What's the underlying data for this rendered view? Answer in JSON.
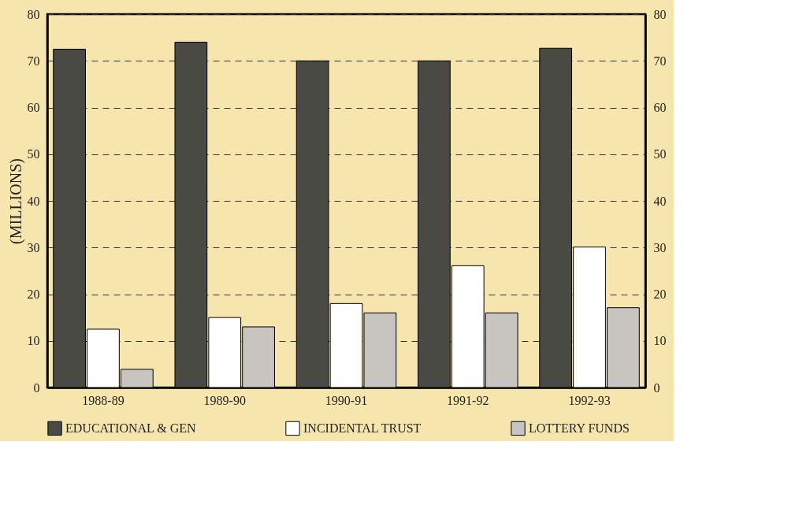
{
  "chart_data": {
    "type": "bar",
    "ylabel": "(MILLIONS)",
    "categories": [
      "1988-89",
      "1989-90",
      "1990-91",
      "1991-92",
      "1992-93"
    ],
    "series": [
      {
        "name": "EDUCATIONAL & GEN",
        "color": "#4a4a44",
        "values": [
          72.5,
          74.0,
          70.0,
          70.0,
          72.7
        ]
      },
      {
        "name": "INCIDENTAL TRUST",
        "color": "#ffffff",
        "values": [
          12.5,
          15.0,
          18.0,
          26.1,
          30.1
        ]
      },
      {
        "name": "LOTTERY FUNDS",
        "color": "#c8c5c0",
        "values": [
          3.9,
          13.0,
          16.0,
          16.0,
          17.1
        ]
      }
    ],
    "ylim": [
      0,
      80
    ],
    "yticks": [
      0,
      10,
      20,
      30,
      40,
      50,
      60,
      70,
      80
    ],
    "y2lim": [
      0,
      80
    ],
    "y2ticks": [
      0,
      10,
      20,
      30,
      40,
      50,
      60,
      70,
      80
    ],
    "grid": "y",
    "line_style": "dashed",
    "legend": "bottom"
  }
}
